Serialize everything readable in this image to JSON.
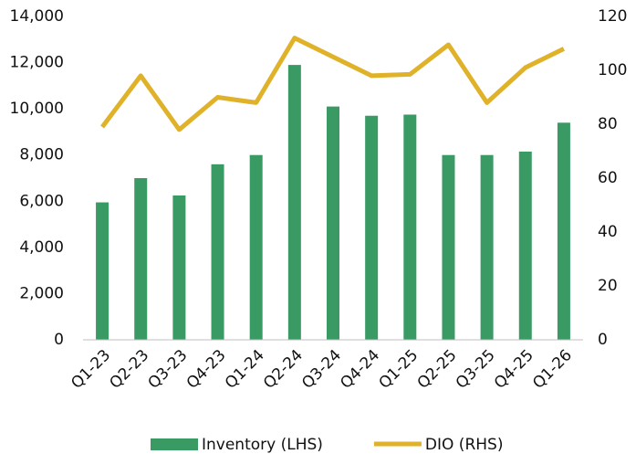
{
  "chart_data": {
    "type": "bar_line",
    "categories": [
      "Q1-23",
      "Q2-23",
      "Q3-23",
      "Q4-23",
      "Q1-24",
      "Q2-24",
      "Q3-24",
      "Q4-24",
      "Q1-25",
      "Q2-25",
      "Q3-25",
      "Q4-25",
      "Q1-26"
    ],
    "series": [
      {
        "name": "Inventory (LHS)",
        "type": "bar",
        "color": "#3a9a64",
        "values": [
          5950,
          7000,
          6250,
          7600,
          8000,
          11900,
          10100,
          9700,
          9750,
          8000,
          8000,
          8150,
          9400
        ]
      },
      {
        "name": "DIO (RHS)",
        "type": "line",
        "axis": "y2",
        "color": "#e0b22a",
        "values": [
          79,
          98,
          78,
          90,
          88,
          112,
          105,
          98,
          98.5,
          109.5,
          88,
          101,
          108
        ]
      }
    ],
    "ylim": [
      0,
      14000
    ],
    "yticks": [
      0,
      {
        "value": 2000,
        "label": "2,000"
      },
      {
        "value": 4000,
        "label": "4,000"
      },
      {
        "value": 6000,
        "label": "6,000"
      },
      {
        "value": 8000,
        "label": "8,000"
      },
      {
        "value": 10000,
        "label": "10,000"
      },
      {
        "value": 12000,
        "label": "12,000"
      },
      {
        "value": 14000,
        "label": "14,000"
      }
    ],
    "y2lim": [
      0,
      120
    ],
    "y2ticks": [
      0,
      20,
      40,
      60,
      80,
      100,
      120
    ],
    "legend": "bottom"
  }
}
